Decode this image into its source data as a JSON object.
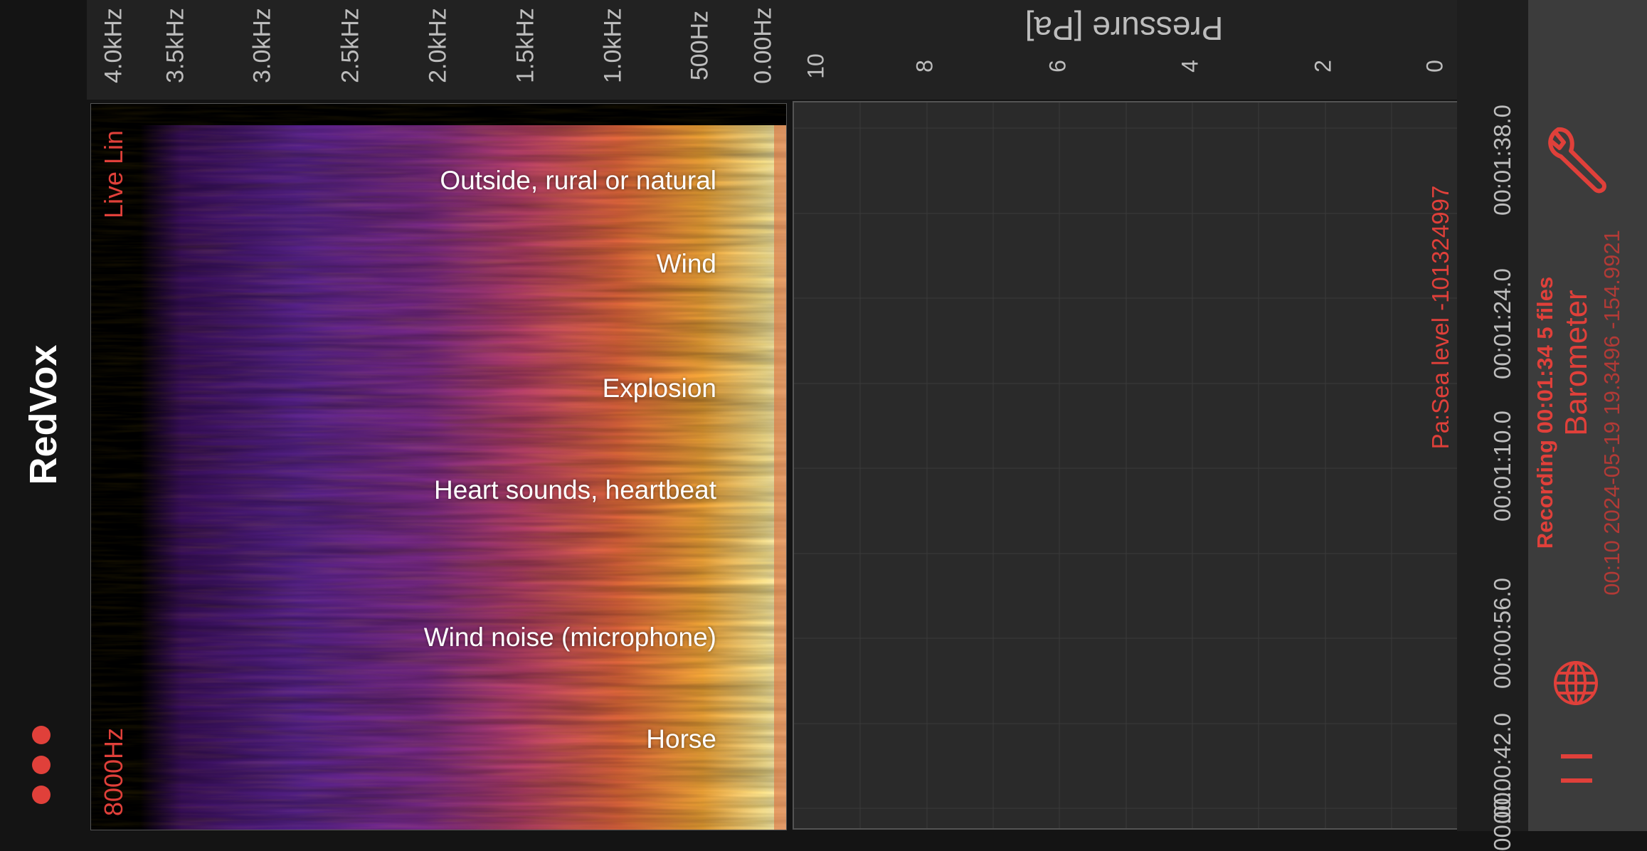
{
  "app": {
    "title": "RedVox"
  },
  "spectrogram": {
    "mode_label": "Live Lin",
    "max_freq_label": "8000Hz",
    "freq_ticks": [
      "4.0kHz",
      "3.5kHz",
      "3.0kHz",
      "2.5kHz",
      "2.0kHz",
      "1.5kHz",
      "1.0kHz",
      "500Hz",
      "0.00Hz"
    ],
    "classifications": [
      "Outside, rural or natural",
      "Wind",
      "Explosion",
      "Heart sounds, heartbeat",
      "Wind noise (microphone)",
      "Horse"
    ]
  },
  "pressure": {
    "axis_title": "Pressure [Pa]",
    "ticks": [
      "10",
      "8",
      "6",
      "4",
      "2",
      "0"
    ],
    "sea_level_label": "Pa:Sea level -101324997"
  },
  "time_axis": {
    "ticks": [
      "00:01:38.0",
      "00:01:24.0",
      "00:01:10.0",
      "00:00:56.0",
      "00:00:42.0",
      "00:00:"
    ]
  },
  "status": {
    "recording": "Recording 00:01:34   5 files",
    "sensor": "Barometer",
    "meta": "00:10 2024-05-19 19.3496  -154.9921"
  },
  "icons": {
    "menu": "more-dots-icon",
    "settings": "wrench-icon",
    "location": "globe-icon",
    "pause": "pause-icon"
  },
  "colors": {
    "accent": "#e0403a",
    "panel": "#3c3c3c",
    "background": "#141414"
  }
}
